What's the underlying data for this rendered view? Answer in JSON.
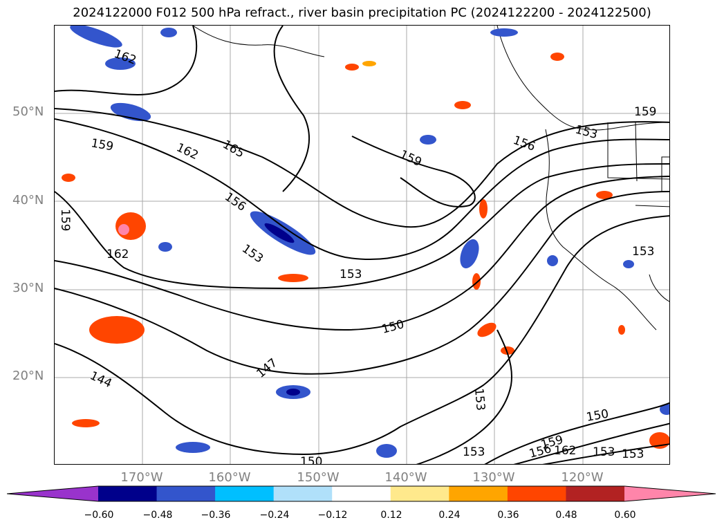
{
  "title": "2024122000 F012 500 hPa refract., river basin precipitation PC (2024122200 - 2024122500)",
  "lat_labels": [
    {
      "text": "50°N",
      "lat": 50
    },
    {
      "text": "40°N",
      "lat": 40
    },
    {
      "text": "30°N",
      "lat": 30
    },
    {
      "text": "20°N",
      "lat": 20
    }
  ],
  "lon_labels": [
    {
      "text": "170°W",
      "lon": -170
    },
    {
      "text": "160°W",
      "lon": -160
    },
    {
      "text": "150°W",
      "lon": -150
    },
    {
      "text": "140°W",
      "lon": -140
    },
    {
      "text": "130°W",
      "lon": -130
    },
    {
      "text": "120°W",
      "lon": -120
    }
  ],
  "map_extent": {
    "lon_min": -180,
    "lon_max": -110,
    "lat_min": 10,
    "lat_max": 60
  },
  "contour_labels": [
    "162",
    "159",
    "162",
    "165",
    "156",
    "159",
    "159",
    "156",
    "153",
    "159",
    "162",
    "153",
    "153",
    "150",
    "147",
    "144",
    "153",
    "150",
    "150",
    "153",
    "156",
    "159",
    "162",
    "153",
    "153",
    "153"
  ],
  "colorbar": {
    "ticks": [
      "−0.60",
      "−0.48",
      "−0.36",
      "−0.24",
      "−0.12",
      "0.12",
      "0.24",
      "0.36",
      "0.48",
      "0.60"
    ],
    "colors": [
      "#9933cc",
      "#00008b",
      "#3355cc",
      "#00bfff",
      "#b0e0fa",
      "#ffffff",
      "#ffe98c",
      "#ffa500",
      "#ff4500",
      "#b22222",
      "#ff85aa"
    ]
  }
}
